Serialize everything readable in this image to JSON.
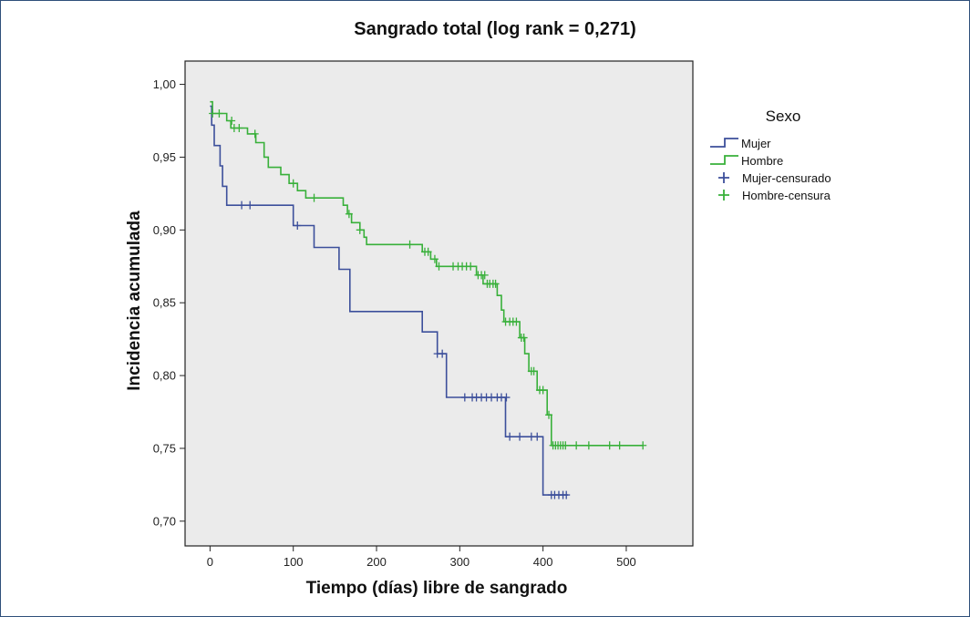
{
  "chart_data": {
    "type": "line",
    "subtype": "kaplan-meier-step",
    "title": "Sangrado total (log rank = 0,271)",
    "xlabel": "Tiempo (días) libre de sangrado",
    "ylabel": "Incidencia acumulada",
    "xlim": [
      -30,
      580
    ],
    "ylim": [
      0.683,
      1.016
    ],
    "xticks": [
      0,
      100,
      200,
      300,
      400,
      500
    ],
    "xtick_labels": [
      "0",
      "100",
      "200",
      "300",
      "400",
      "500"
    ],
    "yticks": [
      0.7,
      0.75,
      0.8,
      0.85,
      0.9,
      0.95,
      1.0
    ],
    "ytick_labels": [
      "0,70",
      "0,75",
      "0,80",
      "0,85",
      "0,90",
      "0,95",
      "1,00"
    ],
    "plot_background": "#ebebeb",
    "grid": false,
    "legend": {
      "title": "Sexo",
      "placement": "right",
      "entries": [
        "Mujer",
        "Hombre",
        "Mujer-censurado",
        "Hombre-censura"
      ]
    },
    "series": [
      {
        "name": "Mujer",
        "color": "#3c4f9b",
        "steps": [
          [
            0,
            0.985
          ],
          [
            2,
            0.972
          ],
          [
            5,
            0.958
          ],
          [
            12,
            0.944
          ],
          [
            15,
            0.93
          ],
          [
            20,
            0.917
          ],
          [
            100,
            0.903
          ],
          [
            125,
            0.888
          ],
          [
            155,
            0.873
          ],
          [
            168,
            0.844
          ],
          [
            255,
            0.83
          ],
          [
            273,
            0.815
          ],
          [
            284,
            0.785
          ],
          [
            355,
            0.758
          ],
          [
            400,
            0.718
          ]
        ],
        "end_x": 430,
        "censored": [
          [
            38,
            0.917
          ],
          [
            48,
            0.917
          ],
          [
            105,
            0.903
          ],
          [
            273,
            0.815
          ],
          [
            279,
            0.815
          ],
          [
            306,
            0.785
          ],
          [
            315,
            0.785
          ],
          [
            320,
            0.785
          ],
          [
            326,
            0.785
          ],
          [
            332,
            0.785
          ],
          [
            338,
            0.785
          ],
          [
            345,
            0.785
          ],
          [
            350,
            0.785
          ],
          [
            356,
            0.785
          ],
          [
            360,
            0.758
          ],
          [
            372,
            0.758
          ],
          [
            386,
            0.758
          ],
          [
            393,
            0.758
          ],
          [
            410,
            0.718
          ],
          [
            414,
            0.718
          ],
          [
            419,
            0.718
          ],
          [
            424,
            0.718
          ],
          [
            428,
            0.718
          ]
        ]
      },
      {
        "name": "Hombre",
        "color": "#38b03a",
        "steps": [
          [
            0,
            0.988
          ],
          [
            3,
            0.98
          ],
          [
            20,
            0.975
          ],
          [
            25,
            0.97
          ],
          [
            45,
            0.966
          ],
          [
            55,
            0.96
          ],
          [
            65,
            0.95
          ],
          [
            70,
            0.943
          ],
          [
            85,
            0.938
          ],
          [
            95,
            0.932
          ],
          [
            105,
            0.927
          ],
          [
            115,
            0.922
          ],
          [
            160,
            0.917
          ],
          [
            165,
            0.911
          ],
          [
            170,
            0.905
          ],
          [
            180,
            0.9
          ],
          [
            185,
            0.895
          ],
          [
            188,
            0.89
          ],
          [
            255,
            0.885
          ],
          [
            265,
            0.88
          ],
          [
            272,
            0.875
          ],
          [
            320,
            0.869
          ],
          [
            328,
            0.863
          ],
          [
            345,
            0.855
          ],
          [
            350,
            0.845
          ],
          [
            353,
            0.837
          ],
          [
            372,
            0.826
          ],
          [
            378,
            0.815
          ],
          [
            383,
            0.803
          ],
          [
            393,
            0.79
          ],
          [
            405,
            0.773
          ],
          [
            410,
            0.752
          ]
        ],
        "end_x": 520,
        "censored": [
          [
            3,
            0.98
          ],
          [
            11,
            0.98
          ],
          [
            26,
            0.975
          ],
          [
            29,
            0.97
          ],
          [
            35,
            0.97
          ],
          [
            54,
            0.966
          ],
          [
            100,
            0.932
          ],
          [
            125,
            0.922
          ],
          [
            167,
            0.911
          ],
          [
            180,
            0.9
          ],
          [
            240,
            0.89
          ],
          [
            258,
            0.885
          ],
          [
            262,
            0.885
          ],
          [
            270,
            0.88
          ],
          [
            275,
            0.875
          ],
          [
            292,
            0.875
          ],
          [
            298,
            0.875
          ],
          [
            303,
            0.875
          ],
          [
            308,
            0.875
          ],
          [
            313,
            0.875
          ],
          [
            322,
            0.869
          ],
          [
            326,
            0.869
          ],
          [
            330,
            0.869
          ],
          [
            333,
            0.863
          ],
          [
            336,
            0.863
          ],
          [
            340,
            0.863
          ],
          [
            343,
            0.863
          ],
          [
            355,
            0.837
          ],
          [
            360,
            0.837
          ],
          [
            364,
            0.837
          ],
          [
            368,
            0.837
          ],
          [
            374,
            0.826
          ],
          [
            377,
            0.826
          ],
          [
            386,
            0.803
          ],
          [
            389,
            0.803
          ],
          [
            396,
            0.79
          ],
          [
            400,
            0.79
          ],
          [
            407,
            0.773
          ],
          [
            412,
            0.752
          ],
          [
            415,
            0.752
          ],
          [
            418,
            0.752
          ],
          [
            421,
            0.752
          ],
          [
            424,
            0.752
          ],
          [
            427,
            0.752
          ],
          [
            440,
            0.752
          ],
          [
            455,
            0.752
          ],
          [
            480,
            0.752
          ],
          [
            492,
            0.752
          ],
          [
            520,
            0.752
          ]
        ]
      }
    ]
  }
}
